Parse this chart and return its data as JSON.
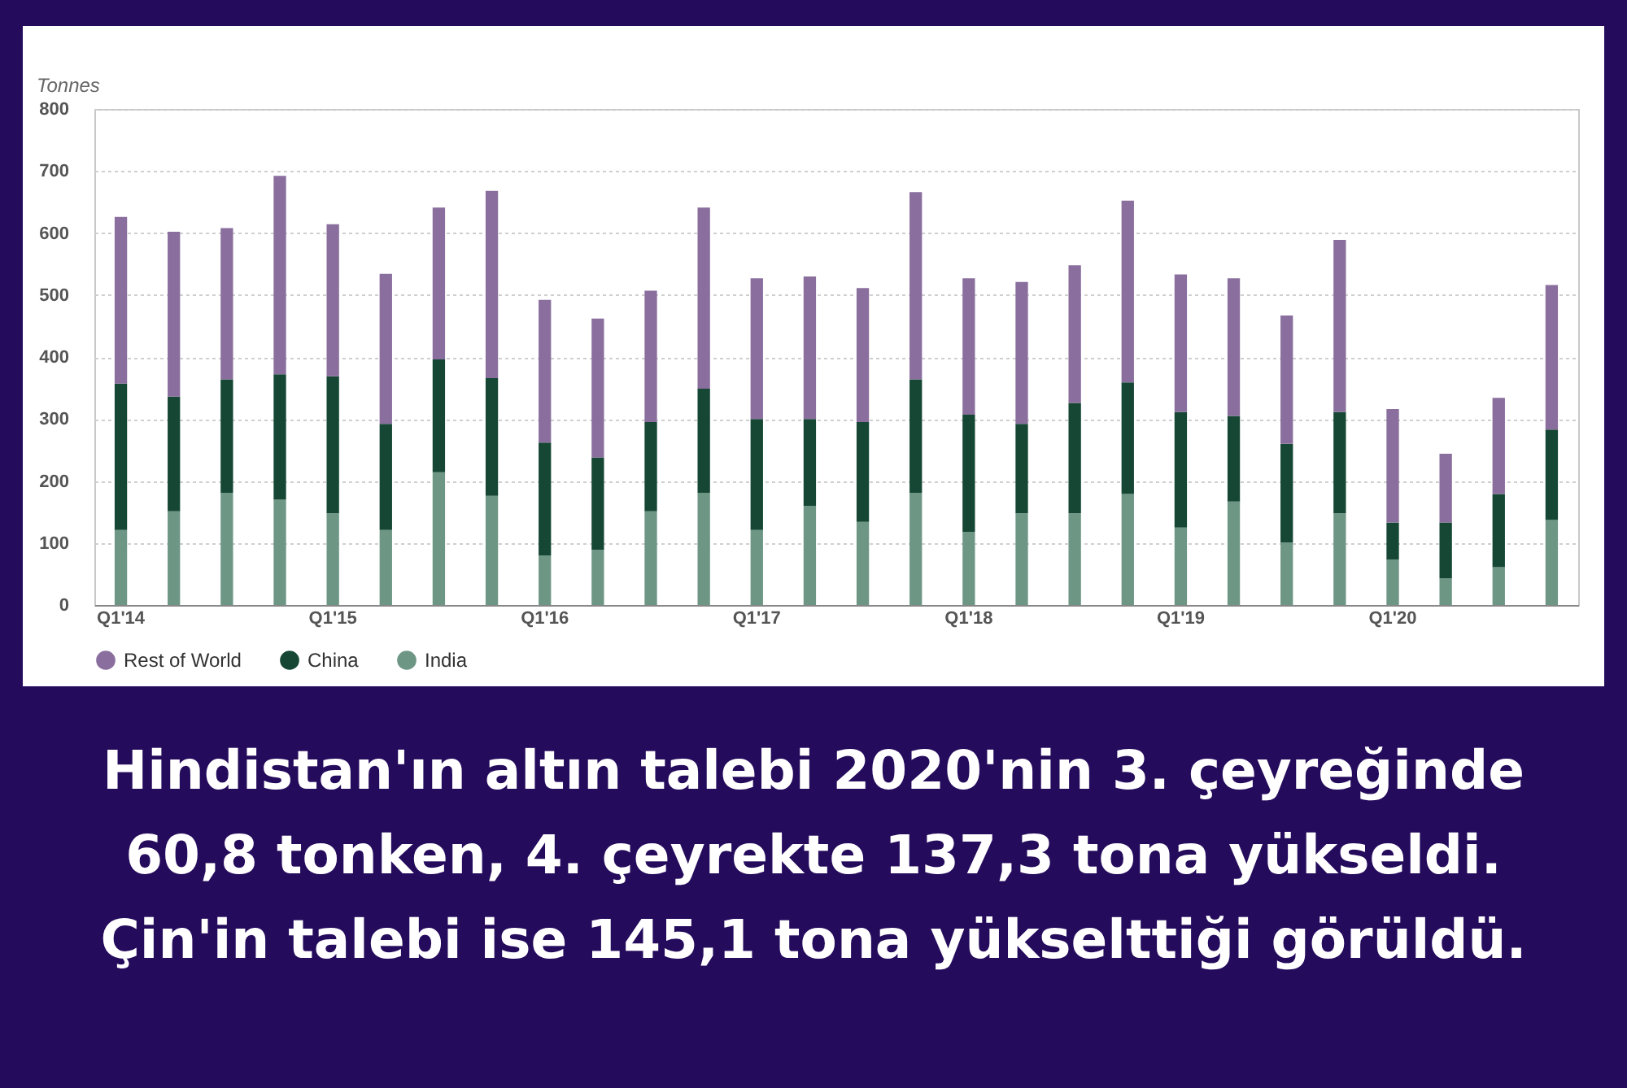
{
  "chart_data": {
    "type": "bar",
    "stacked": true,
    "ylabel": "Tonnes",
    "categories": [
      "Q1'14",
      null,
      null,
      null,
      "Q1'15",
      null,
      null,
      null,
      "Q1'16",
      null,
      null,
      null,
      "Q1'17",
      null,
      null,
      null,
      "Q1'18",
      null,
      null,
      null,
      "Q1'19",
      null,
      null,
      null,
      "Q1'20",
      null,
      null,
      null
    ],
    "series": [
      {
        "name": "India",
        "color": "#6e9685",
        "values": [
          121,
          151,
          181,
          170,
          148,
          121,
          214,
          176,
          80,
          89,
          151,
          181,
          121,
          160,
          134,
          181,
          118,
          148,
          148,
          179,
          125,
          167,
          101,
          148,
          73,
          43,
          61,
          137
        ]
      },
      {
        "name": "China",
        "color": "#154734",
        "values": [
          236,
          185,
          183,
          202,
          221,
          171,
          182,
          190,
          182,
          149,
          144,
          168,
          179,
          140,
          161,
          183,
          189,
          144,
          178,
          180,
          186,
          138,
          159,
          163,
          60,
          90,
          118,
          146
        ]
      },
      {
        "name": "Rest of World",
        "color": "#8a6f9e",
        "values": [
          269,
          266,
          244,
          320,
          245,
          242,
          245,
          302,
          230,
          224,
          212,
          292,
          227,
          230,
          216,
          302,
          220,
          229,
          222,
          293,
          222,
          222,
          207,
          278,
          183,
          111,
          155,
          233
        ]
      }
    ],
    "ylim": [
      0,
      800
    ],
    "yticks": [
      0,
      100,
      200,
      300,
      400,
      500,
      600,
      700,
      800
    ],
    "grid": "y",
    "legend": "bottom left",
    "annotations": [
      "Hindistan'ın altın talebi 2020'nin 3. çeyreğinde 60,8 tonken, 4. çeyrekte 137,3 tona yükseldi. Çin'in talebi ise 145,1 tona yükselttiği görüldü."
    ]
  }
}
